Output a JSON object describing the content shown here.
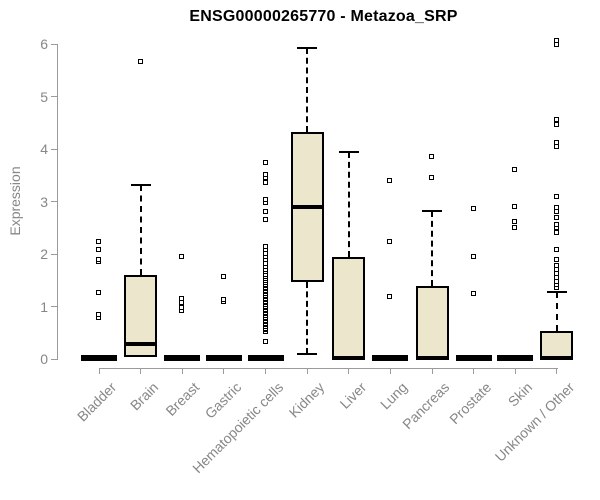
{
  "chart_data": {
    "type": "box",
    "title": "ENSG00000265770 - Metazoa_SRP",
    "ylabel": "Expression",
    "xlabel": "",
    "ylim": [
      0,
      6
    ],
    "yticks": [
      0,
      1,
      2,
      3,
      4,
      5,
      6
    ],
    "grid": false,
    "legend": "none",
    "categories": [
      "Bladder",
      "Brain",
      "Breast",
      "Gastric",
      "Hematopoietic cells",
      "Kidney",
      "Liver",
      "Lung",
      "Pancreas",
      "Prostate",
      "Skin",
      "Unknown / Other"
    ],
    "series": [
      {
        "category": "Bladder",
        "low": 0,
        "q1": 0,
        "median": 0,
        "q3": 0,
        "high": 0,
        "outliers": [
          0.78,
          0.84,
          1.26,
          1.84,
          1.88,
          2.08,
          2.24
        ]
      },
      {
        "category": "Brain",
        "low": 0.04,
        "q1": 0.04,
        "median": 0.28,
        "q3": 1.6,
        "high": 3.32,
        "outliers": [
          5.66
        ]
      },
      {
        "category": "Breast",
        "low": 0,
        "q1": 0,
        "median": 0,
        "q3": 0,
        "high": 0,
        "outliers": [
          0.92,
          0.98,
          1.06,
          1.14,
          1.95
        ]
      },
      {
        "category": "Gastric",
        "low": 0,
        "q1": 0,
        "median": 0,
        "q3": 0,
        "high": 0,
        "outliers": [
          1.09,
          1.13,
          1.57
        ]
      },
      {
        "category": "Hematopoietic cells",
        "low": 0,
        "q1": 0,
        "median": 0,
        "q3": 0,
        "high": 0,
        "outliers": [
          0.33,
          0.52,
          0.55,
          0.58,
          0.61,
          0.64,
          0.67,
          0.7,
          0.73,
          0.76,
          0.79,
          0.82,
          0.85,
          0.88,
          0.91,
          0.94,
          0.97,
          1.0,
          1.03,
          1.06,
          1.09,
          1.12,
          1.15,
          1.18,
          1.21,
          1.24,
          1.27,
          1.3,
          1.33,
          1.36,
          1.39,
          1.42,
          1.45,
          1.48,
          1.52,
          1.56,
          1.6,
          1.65,
          1.7,
          1.76,
          1.82,
          1.88,
          1.94,
          2.0,
          2.07,
          2.14,
          2.65,
          2.81,
          2.97,
          3.03,
          3.35,
          3.45,
          3.51,
          3.73
        ]
      },
      {
        "category": "Kidney",
        "low": 0.1,
        "q1": 1.47,
        "median": 2.9,
        "q3": 4.32,
        "high": 5.93,
        "outliers": []
      },
      {
        "category": "Liver",
        "low": 0,
        "q1": 0,
        "median": 0.02,
        "q3": 1.95,
        "high": 3.95,
        "outliers": []
      },
      {
        "category": "Lung",
        "low": 0,
        "q1": 0,
        "median": 0,
        "q3": 0,
        "high": 0,
        "outliers": [
          1.19,
          2.24,
          3.4
        ]
      },
      {
        "category": "Pancreas",
        "low": 0,
        "q1": 0,
        "median": 0.02,
        "q3": 1.4,
        "high": 2.82,
        "outliers": [
          3.46,
          3.86
        ]
      },
      {
        "category": "Prostate",
        "low": 0,
        "q1": 0,
        "median": 0,
        "q3": 0,
        "high": 0,
        "outliers": [
          1.24,
          1.95,
          2.86
        ]
      },
      {
        "category": "Skin",
        "low": 0,
        "q1": 0,
        "median": 0,
        "q3": 0,
        "high": 0,
        "outliers": [
          2.5,
          2.62,
          2.9,
          3.6
        ]
      },
      {
        "category": "Unknown / Other",
        "low": 0,
        "q1": 0,
        "median": 0.02,
        "q3": 0.53,
        "high": 1.28,
        "outliers": [
          1.35,
          1.41,
          1.47,
          1.54,
          1.62,
          1.7,
          1.78,
          1.89,
          2.08,
          2.4,
          2.49,
          2.55,
          2.68,
          2.81,
          2.87,
          3.09,
          4.05,
          4.12,
          4.47,
          4.56,
          5.99,
          6.07
        ]
      }
    ],
    "colors": {
      "box_fill": "#ece7cc",
      "box_border": "#000000",
      "median": "#000000",
      "whisker": "#000000",
      "axis_line": "#9b9b9b",
      "axis_text": "#878787",
      "title_text": "#000000",
      "background": "#ffffff"
    }
  }
}
